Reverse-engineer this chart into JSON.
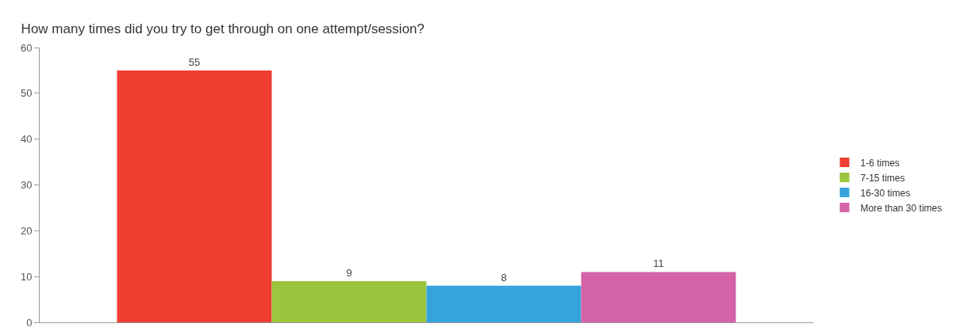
{
  "chart_data": {
    "type": "bar",
    "title": "How many times did you try to get through on one attempt/session?",
    "categories": [
      null
    ],
    "series": [
      {
        "name": "1-6 times",
        "color": "#ef3e32",
        "values": [
          55
        ]
      },
      {
        "name": "7-15 times",
        "color": "#9bc53d",
        "values": [
          9
        ]
      },
      {
        "name": "16-30 times",
        "color": "#35a3dc",
        "values": [
          8
        ]
      },
      {
        "name": "More than 30 times",
        "color": "#d463a8",
        "values": [
          11
        ]
      }
    ],
    "ylim": [
      0,
      60
    ],
    "yticks": [
      0,
      10,
      20,
      30,
      40,
      50,
      60
    ],
    "data_labels": true,
    "legend": "right"
  }
}
